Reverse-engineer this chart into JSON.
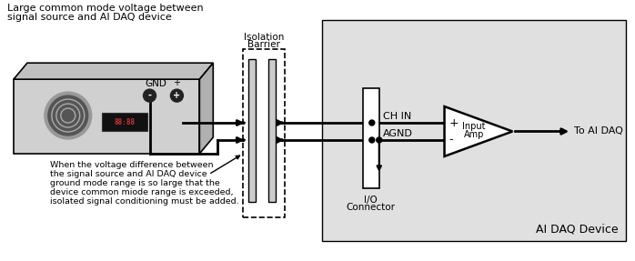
{
  "bg_color": "#ffffff",
  "white": "#ffffff",
  "black": "#000000",
  "gray_device_face": "#d0d0d0",
  "gray_device_top": "#c0c0c0",
  "gray_device_side": "#b0b0b0",
  "light_gray_daq": "#e0e0e0",
  "title_text1": "Large common mode voltage between",
  "title_text2": "signal source and AI DAQ device",
  "bottom_text1": "When the voltage difference between",
  "bottom_text2": "the signal source and AI DAQ device",
  "bottom_text3": "ground mode range is so large that the",
  "bottom_text4": "device common miode range is exceeded,",
  "bottom_text5": "isolated signal conditioning must be added.",
  "isolation_label1": "Isolation",
  "isolation_label2": "Barrier",
  "ch_in_label": "CH IN",
  "agnd_label": "AGND",
  "io_label1": "I/O",
  "io_label2": "Connector",
  "amp_label1": "Input",
  "amp_label2": "Amp",
  "gnd_label": "GND",
  "to_ai_daq": "To AI DAQ",
  "ai_daq_device": "AI DAQ Device",
  "plus_label": "+",
  "minus_label": "-",
  "amp_plus": "+",
  "amp_minus": "-"
}
